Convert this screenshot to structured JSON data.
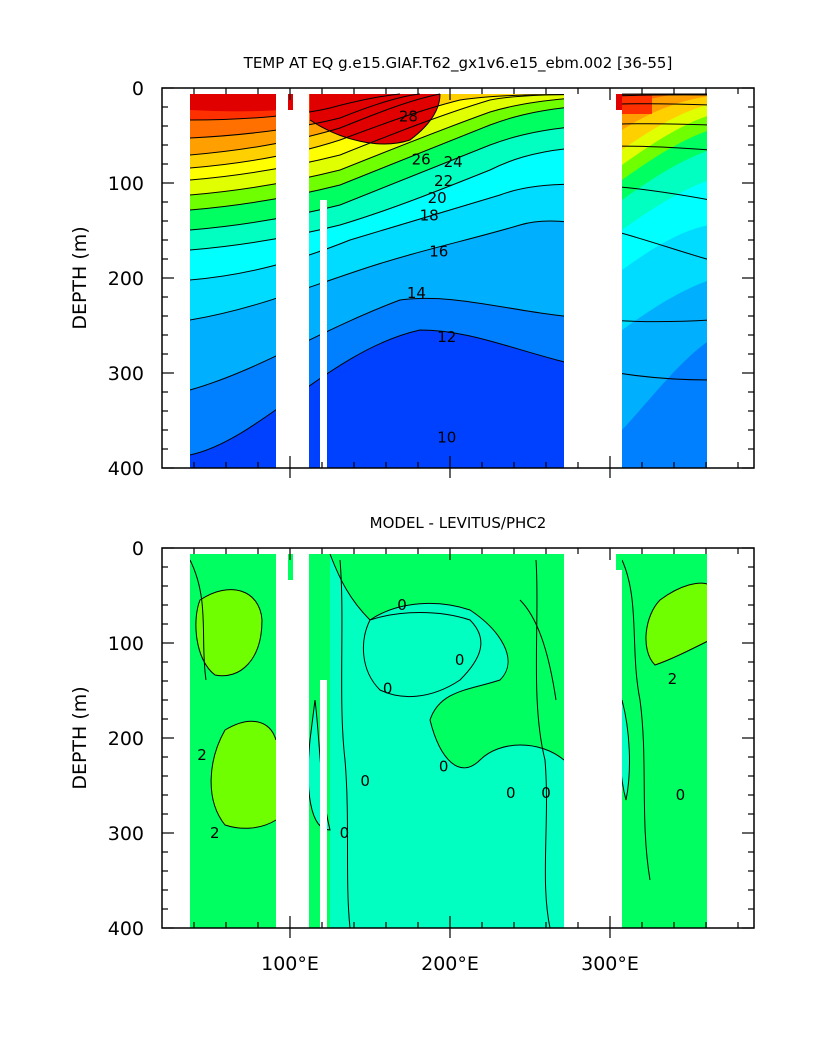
{
  "chart_data": [
    {
      "type": "heatmap",
      "subtype": "filled-contour depth-longitude section",
      "title": "TEMP AT EQ g.e15.GIAF.T62_gx1v6.e15_ebm.002 [36-55]",
      "ylabel": "DEPTH (m)",
      "xlabel": "",
      "x_range": [
        20,
        390
      ],
      "ylim": [
        400,
        0
      ],
      "y_ticks": [
        0,
        100,
        200,
        300,
        400
      ],
      "y_tick_labels": [
        "0",
        "100",
        "200",
        "300",
        "400"
      ],
      "x_ticks": [
        100,
        200,
        300
      ],
      "x_tick_labels": [
        "",
        "",
        ""
      ],
      "contour_interval": 1,
      "contour_labels": [
        {
          "text": "28",
          "lon": 174,
          "depth": 30
        },
        {
          "text": "26",
          "lon": 182,
          "depth": 75
        },
        {
          "text": "24",
          "lon": 202,
          "depth": 78
        },
        {
          "text": "22",
          "lon": 196,
          "depth": 98
        },
        {
          "text": "20",
          "lon": 192,
          "depth": 116
        },
        {
          "text": "18",
          "lon": 187,
          "depth": 134
        },
        {
          "text": "16",
          "lon": 193,
          "depth": 172
        },
        {
          "text": "14",
          "lon": 179,
          "depth": 216
        },
        {
          "text": "12",
          "lon": 198,
          "depth": 262
        },
        {
          "text": "10",
          "lon": 198,
          "depth": 368
        }
      ],
      "land_gaps_lon": [
        [
          98,
          117
        ],
        [
          124,
          128
        ],
        [
          278,
          314
        ],
        [
          368,
          390
        ]
      ],
      "color_scale": [
        "#0040ff",
        "#0080ff",
        "#00b0ff",
        "#00dcff",
        "#00ffff",
        "#00ffc0",
        "#00ff60",
        "#70ff00",
        "#e0ff00",
        "#ffff00",
        "#ffd000",
        "#ffa000",
        "#ff7000",
        "#ff3000",
        "#e00000"
      ]
    },
    {
      "type": "heatmap",
      "subtype": "filled-contour depth-longitude section",
      "title": "MODEL - LEVITUS/PHC2",
      "ylabel": "DEPTH (m)",
      "xlabel": "",
      "x_range": [
        20,
        390
      ],
      "ylim": [
        400,
        0
      ],
      "y_ticks": [
        0,
        100,
        200,
        300,
        400
      ],
      "y_tick_labels": [
        "0",
        "100",
        "200",
        "300",
        "400"
      ],
      "x_ticks": [
        100,
        200,
        300
      ],
      "x_tick_labels": [
        "100°E",
        "200°E",
        "300°E"
      ],
      "contour_interval": 1,
      "contour_labels": [
        {
          "text": "0",
          "lon": 170,
          "depth": 60
        },
        {
          "text": "0",
          "lon": 206,
          "depth": 118
        },
        {
          "text": "0",
          "lon": 161,
          "depth": 148
        },
        {
          "text": "0",
          "lon": 196,
          "depth": 230
        },
        {
          "text": "0",
          "lon": 147,
          "depth": 245
        },
        {
          "text": "0",
          "lon": 260,
          "depth": 258
        },
        {
          "text": "0",
          "lon": 238,
          "depth": 258
        },
        {
          "text": "0",
          "lon": 344,
          "depth": 260
        },
        {
          "text": "0",
          "lon": 134,
          "depth": 300
        },
        {
          "text": "2",
          "lon": 45,
          "depth": 218
        },
        {
          "text": "2",
          "lon": 53,
          "depth": 300
        },
        {
          "text": "2",
          "lon": 339,
          "depth": 138
        }
      ],
      "land_gaps_lon": [
        [
          98,
          117
        ],
        [
          124,
          128
        ],
        [
          278,
          314
        ],
        [
          368,
          390
        ]
      ],
      "color_scale": [
        "#00ffc0",
        "#00ff60",
        "#70ff00"
      ]
    }
  ]
}
